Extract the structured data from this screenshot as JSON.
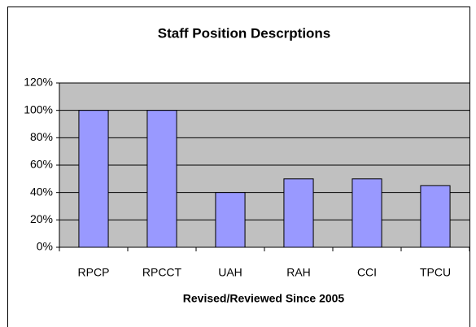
{
  "chart_data": {
    "type": "bar",
    "title": "Staff Position Descrptions",
    "x_label": "Revised/Reviewed Since 2005",
    "categories": [
      "RPCP",
      "RPCCT",
      "UAH",
      "RAH",
      "CCI",
      "TPCU"
    ],
    "values": [
      100,
      100,
      40,
      50,
      50,
      45
    ],
    "color": "#9999ff",
    "ylim": [
      0,
      120
    ],
    "yticks": [
      {
        "value": 0,
        "label": "0%"
      },
      {
        "value": 20,
        "label": "20%"
      },
      {
        "value": 40,
        "label": "40%"
      },
      {
        "value": 60,
        "label": "60%"
      },
      {
        "value": 80,
        "label": "80%"
      },
      {
        "value": 100,
        "label": "100%"
      },
      {
        "value": 120,
        "label": "120%"
      }
    ],
    "grid": true
  }
}
